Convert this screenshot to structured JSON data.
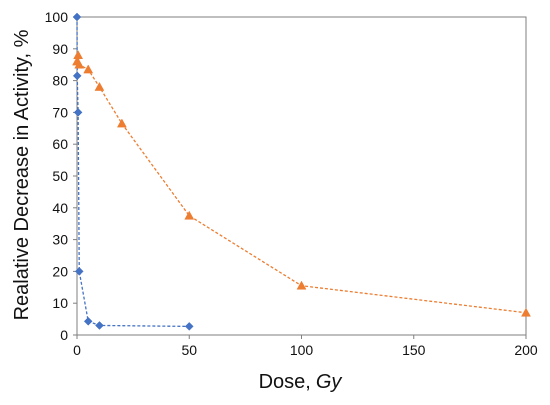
{
  "chart_data": {
    "type": "line",
    "title": "",
    "xlabel": "Dose,",
    "xlabel_unit": "Gy",
    "ylabel": "Realative Decrease in Activity, %",
    "xlim": [
      0,
      200
    ],
    "ylim": [
      0,
      100
    ],
    "xticks": [
      0,
      50,
      100,
      150,
      200
    ],
    "yticks": [
      0,
      10,
      20,
      30,
      40,
      50,
      60,
      70,
      80,
      90,
      100
    ],
    "grid": false,
    "legend": "none",
    "series": [
      {
        "marker": "diamond",
        "line_style": "dashed",
        "color": "#4472C4",
        "x": [
          0,
          0.1,
          0.5,
          1,
          5,
          10,
          50
        ],
        "y": [
          100,
          81.5,
          70,
          20,
          4.3,
          3,
          2.7
        ]
      },
      {
        "marker": "triangle",
        "line_style": "dashed",
        "color": "#ED7D31",
        "x": [
          0,
          0.5,
          1,
          5,
          10,
          20,
          50,
          100,
          200
        ],
        "y": [
          86,
          88,
          85,
          83.5,
          78,
          66.5,
          37.5,
          15.5,
          7
        ]
      }
    ]
  }
}
